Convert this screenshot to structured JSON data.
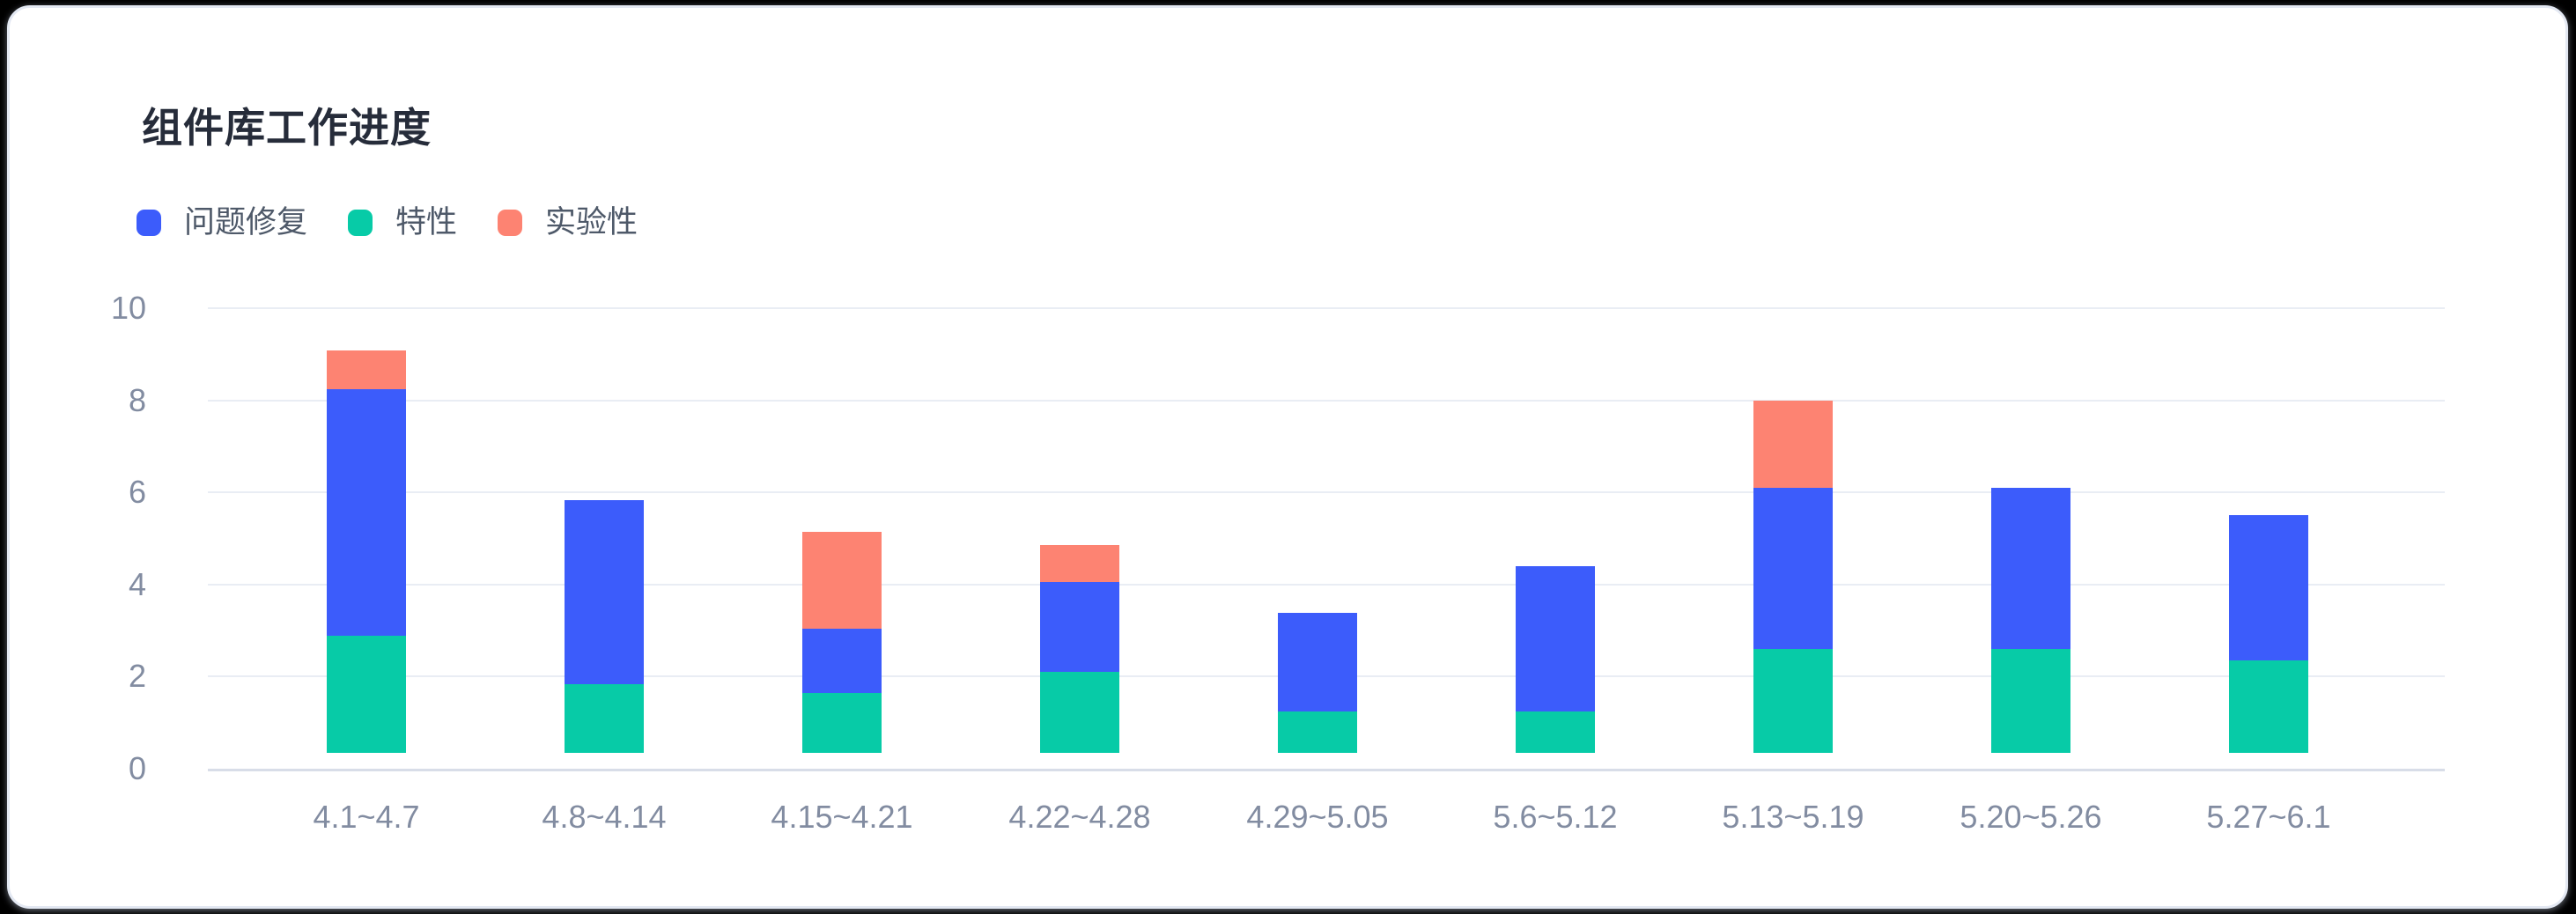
{
  "chart": {
    "title": "组件库工作进度"
  },
  "chart_data": {
    "type": "bar",
    "stacked": true,
    "title": "组件库工作进度",
    "categories": [
      "4.1~4.7",
      "4.8~4.14",
      "4.15~4.21",
      "4.22~4.28",
      "4.29~5.05",
      "5.6~5.12",
      "5.13~5.19",
      "5.20~5.26",
      "5.27~6.1"
    ],
    "series": [
      {
        "name": "问题修复",
        "color": "#3C5CFB",
        "values": [
          5.35,
          4.0,
          1.4,
          1.95,
          2.15,
          3.15,
          3.5,
          3.5,
          3.15
        ]
      },
      {
        "name": "特性",
        "color": "#07CBA7",
        "values": [
          2.55,
          1.5,
          1.3,
          1.75,
          0.9,
          0.9,
          2.25,
          2.25,
          2.0
        ]
      },
      {
        "name": "实验性",
        "color": "#FD8372",
        "values": [
          0.85,
          0,
          2.1,
          0.8,
          0,
          0,
          1.9,
          0,
          0
        ]
      }
    ],
    "stack_order_bottom_to_top": [
      "特性",
      "问题修复",
      "实验性"
    ],
    "totals": [
      8.75,
      5.5,
      4.8,
      4.5,
      3.05,
      4.05,
      7.65,
      5.75,
      5.15
    ],
    "y_ticks": [
      0,
      2,
      4,
      6,
      8,
      10
    ],
    "ylim": [
      0,
      10
    ],
    "xlabel": "",
    "ylabel": "",
    "grid": true,
    "legend_position": "top-left",
    "colors": {
      "title_text": "#262C3A",
      "legend_text": "#4E5969",
      "axis_text": "#828CA1",
      "grid_line": "#E9EDF4",
      "axis_line": "#D8DDE8",
      "card_background": "#FFFFFF",
      "page_background": "#000000"
    }
  }
}
